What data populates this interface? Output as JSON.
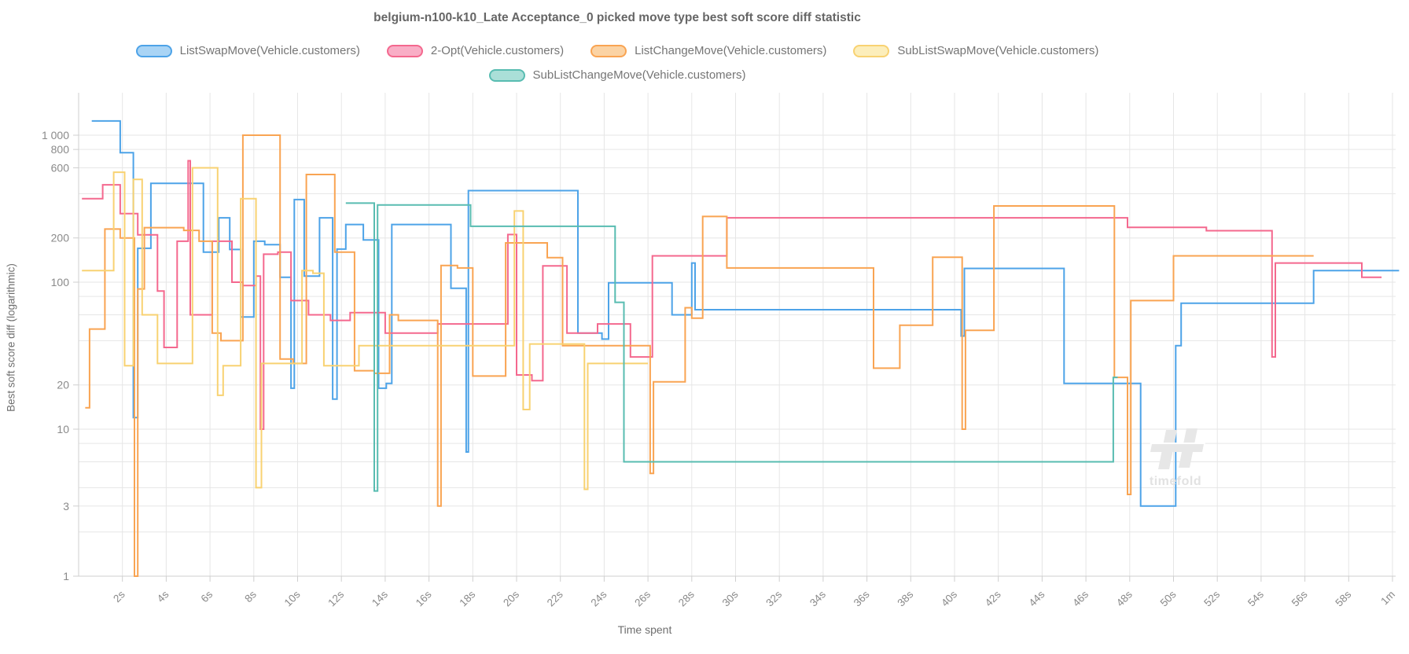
{
  "watermark": {
    "brand": "timefold"
  },
  "chart_data": {
    "type": "line",
    "step": true,
    "title": "belgium-n100-k10_Late Acceptance_0 picked move type best soft score diff statistic",
    "xlabel": "Time spent",
    "ylabel": "Best soft score diff (logarithmic)",
    "x_unit": "seconds",
    "xlim": [
      0,
      60.3
    ],
    "ylim": [
      1,
      1600
    ],
    "y_log": true,
    "grid": true,
    "legend_position": "top",
    "x_ticks": [
      {
        "v": 2,
        "label": "2s"
      },
      {
        "v": 4,
        "label": "4s"
      },
      {
        "v": 6,
        "label": "6s"
      },
      {
        "v": 8,
        "label": "8s"
      },
      {
        "v": 10,
        "label": "10s"
      },
      {
        "v": 12,
        "label": "12s"
      },
      {
        "v": 14,
        "label": "14s"
      },
      {
        "v": 16,
        "label": "16s"
      },
      {
        "v": 18,
        "label": "18s"
      },
      {
        "v": 20,
        "label": "20s"
      },
      {
        "v": 22,
        "label": "22s"
      },
      {
        "v": 24,
        "label": "24s"
      },
      {
        "v": 26,
        "label": "26s"
      },
      {
        "v": 28,
        "label": "28s"
      },
      {
        "v": 30,
        "label": "30s"
      },
      {
        "v": 32,
        "label": "32s"
      },
      {
        "v": 34,
        "label": "34s"
      },
      {
        "v": 36,
        "label": "36s"
      },
      {
        "v": 38,
        "label": "38s"
      },
      {
        "v": 40,
        "label": "40s"
      },
      {
        "v": 42,
        "label": "42s"
      },
      {
        "v": 44,
        "label": "44s"
      },
      {
        "v": 46,
        "label": "46s"
      },
      {
        "v": 48,
        "label": "48s"
      },
      {
        "v": 50,
        "label": "50s"
      },
      {
        "v": 52,
        "label": "52s"
      },
      {
        "v": 54,
        "label": "54s"
      },
      {
        "v": 56,
        "label": "56s"
      },
      {
        "v": 58,
        "label": "58s"
      },
      {
        "v": 60,
        "label": "1m"
      }
    ],
    "y_ticks": [
      {
        "v": 1000,
        "label": "1 000"
      },
      {
        "v": 800,
        "label": "800"
      },
      {
        "v": 600,
        "label": "600"
      },
      {
        "v": 200,
        "label": "200"
      },
      {
        "v": 100,
        "label": "100"
      },
      {
        "v": 20,
        "label": "20"
      },
      {
        "v": 10,
        "label": "10"
      },
      {
        "v": 3,
        "label": "3"
      },
      {
        "v": 1,
        "label": "1"
      }
    ],
    "y_gridlines": [
      1000,
      800,
      600,
      400,
      200,
      100,
      80,
      60,
      40,
      20,
      10,
      8,
      6,
      4,
      3,
      2,
      1
    ],
    "series": [
      {
        "key": "list-swap-move",
        "label": "ListSwapMove(Vehicle.customers)",
        "color": "#4da3e8",
        "fill": "#a9d4f5",
        "legend_row": 1,
        "end": 60.3,
        "points": [
          [
            0.6,
            1250
          ],
          [
            1.9,
            760
          ],
          [
            2.5,
            12
          ],
          [
            2.7,
            170
          ],
          [
            3.3,
            470
          ],
          [
            5.7,
            160
          ],
          [
            6.4,
            274
          ],
          [
            6.9,
            167
          ],
          [
            7.4,
            58
          ],
          [
            8.0,
            190
          ],
          [
            8.5,
            180
          ],
          [
            9.2,
            108
          ],
          [
            9.7,
            19
          ],
          [
            9.85,
            365
          ],
          [
            10.3,
            110
          ],
          [
            11.0,
            274
          ],
          [
            11.6,
            16
          ],
          [
            11.8,
            168
          ],
          [
            12.2,
            247
          ],
          [
            13.0,
            194
          ],
          [
            13.7,
            19
          ],
          [
            14.05,
            20.5
          ],
          [
            14.3,
            247
          ],
          [
            17.0,
            91
          ],
          [
            17.7,
            7
          ],
          [
            17.8,
            420
          ],
          [
            22.8,
            45
          ],
          [
            23.9,
            41
          ],
          [
            24.2,
            99
          ],
          [
            27.1,
            60
          ],
          [
            28.0,
            135
          ],
          [
            28.15,
            65
          ],
          [
            40.3,
            43
          ],
          [
            40.45,
            124
          ],
          [
            45.0,
            20.5
          ],
          [
            48.5,
            3
          ],
          [
            50.1,
            37
          ],
          [
            50.35,
            72
          ],
          [
            56.4,
            120
          ]
        ]
      },
      {
        "key": "two-opt",
        "label": "2-Opt(Vehicle.customers)",
        "color": "#f4688e",
        "fill": "#f9aec6",
        "legend_row": 1,
        "end": 59.5,
        "points": [
          [
            0.15,
            370
          ],
          [
            1.1,
            460
          ],
          [
            1.9,
            293
          ],
          [
            2.7,
            210
          ],
          [
            3.6,
            87
          ],
          [
            3.9,
            36
          ],
          [
            4.5,
            190
          ],
          [
            5.0,
            670
          ],
          [
            5.1,
            60
          ],
          [
            6.1,
            190
          ],
          [
            7.0,
            100
          ],
          [
            7.5,
            95
          ],
          [
            8.1,
            110
          ],
          [
            8.3,
            10
          ],
          [
            8.45,
            155
          ],
          [
            9.1,
            160
          ],
          [
            9.7,
            75
          ],
          [
            10.5,
            60
          ],
          [
            11.5,
            55
          ],
          [
            12.4,
            62
          ],
          [
            14.0,
            45
          ],
          [
            16.4,
            52
          ],
          [
            19.6,
            211
          ],
          [
            20.0,
            23.4
          ],
          [
            20.7,
            21.4
          ],
          [
            21.2,
            129
          ],
          [
            22.3,
            45
          ],
          [
            23.7,
            52
          ],
          [
            25.2,
            31
          ],
          [
            26.2,
            151
          ],
          [
            29.6,
            274
          ],
          [
            47.9,
            236
          ],
          [
            51.5,
            224
          ],
          [
            54.5,
            31
          ],
          [
            54.65,
            135
          ],
          [
            58.6,
            108
          ]
        ]
      },
      {
        "key": "list-change-move",
        "label": "ListChangeMove(Vehicle.customers)",
        "color": "#f9a452",
        "fill": "#fbd3a4",
        "legend_row": 1,
        "end": 56.4,
        "points": [
          [
            0.3,
            14
          ],
          [
            0.5,
            48
          ],
          [
            1.2,
            230
          ],
          [
            1.9,
            200
          ],
          [
            2.55,
            1
          ],
          [
            2.7,
            90
          ],
          [
            3.0,
            235
          ],
          [
            4.8,
            225
          ],
          [
            5.5,
            190
          ],
          [
            6.1,
            45
          ],
          [
            6.5,
            40
          ],
          [
            7.5,
            1000
          ],
          [
            9.2,
            30
          ],
          [
            9.8,
            28
          ],
          [
            10.4,
            540
          ],
          [
            11.7,
            160
          ],
          [
            12.6,
            25
          ],
          [
            13.5,
            24
          ],
          [
            14.2,
            60
          ],
          [
            14.6,
            55
          ],
          [
            16.4,
            3
          ],
          [
            16.55,
            130
          ],
          [
            17.3,
            125
          ],
          [
            18.0,
            23
          ],
          [
            19.5,
            185
          ],
          [
            21.4,
            147
          ],
          [
            22.1,
            37
          ],
          [
            26.1,
            5
          ],
          [
            26.25,
            21
          ],
          [
            27.7,
            67
          ],
          [
            28.0,
            57
          ],
          [
            28.5,
            280
          ],
          [
            29.6,
            125
          ],
          [
            36.3,
            26
          ],
          [
            37.5,
            51
          ],
          [
            39.0,
            148
          ],
          [
            40.35,
            10
          ],
          [
            40.5,
            47
          ],
          [
            41.8,
            330
          ],
          [
            47.3,
            22.5
          ],
          [
            47.9,
            3.6
          ],
          [
            48.05,
            75
          ],
          [
            50.0,
            151
          ]
        ]
      },
      {
        "key": "sub-list-swap-move",
        "label": "SubListSwapMove(Vehicle.customers)",
        "color": "#f8d272",
        "fill": "#fceebb",
        "legend_row": 1,
        "end": 26.0,
        "points": [
          [
            0.15,
            120
          ],
          [
            1.6,
            560
          ],
          [
            2.1,
            27
          ],
          [
            2.5,
            500
          ],
          [
            2.9,
            60
          ],
          [
            3.6,
            28
          ],
          [
            5.2,
            600
          ],
          [
            6.35,
            17
          ],
          [
            6.6,
            27
          ],
          [
            7.4,
            370
          ],
          [
            8.1,
            4
          ],
          [
            8.35,
            28
          ],
          [
            10.2,
            120
          ],
          [
            10.7,
            115
          ],
          [
            11.2,
            27
          ],
          [
            12.8,
            37
          ],
          [
            19.9,
            305
          ],
          [
            20.3,
            13.6
          ],
          [
            20.6,
            38
          ],
          [
            23.1,
            3.9
          ],
          [
            23.25,
            28
          ]
        ]
      },
      {
        "key": "sub-list-change-move",
        "label": "SubListChangeMove(Vehicle.customers)",
        "color": "#58bcb1",
        "fill": "#aadfd8",
        "legend_row": 2,
        "end": 47.45,
        "points": [
          [
            12.2,
            345
          ],
          [
            13.5,
            3.8
          ],
          [
            13.65,
            335
          ],
          [
            17.9,
            240
          ],
          [
            24.5,
            73
          ],
          [
            24.9,
            6
          ],
          [
            47.25,
            22.5
          ]
        ]
      }
    ]
  }
}
